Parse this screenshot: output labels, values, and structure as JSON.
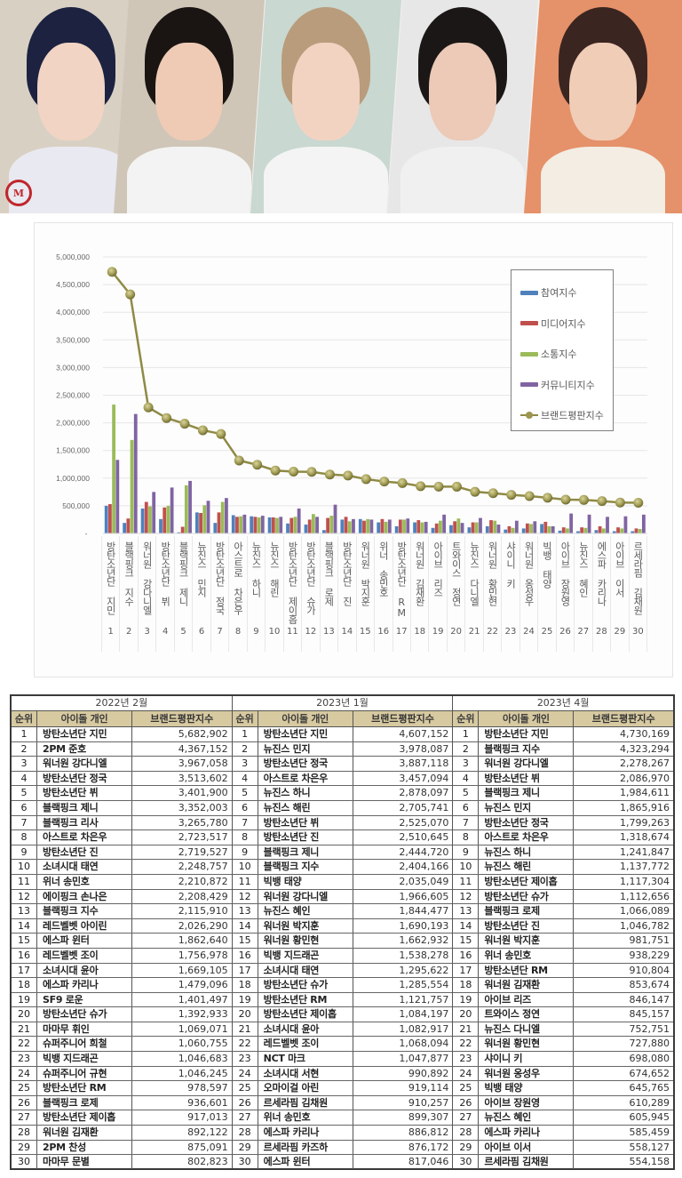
{
  "photos": {
    "people": [
      {
        "label": "photo-1",
        "hair": "#1c2240",
        "skin": "#f1d4c3",
        "shirt": "#e9e9f1",
        "bg": "#d9d0c4"
      },
      {
        "label": "photo-2",
        "hair": "#1a1512",
        "skin": "#efcbb6",
        "shirt": "#f3f3f3",
        "bg": "#cfc6b8"
      },
      {
        "label": "photo-3",
        "hair": "#b99c7c",
        "skin": "#f2d3c2",
        "shirt": "#f4f4f4",
        "bg": "#c9d8d0"
      },
      {
        "label": "photo-4",
        "hair": "#1b1716",
        "skin": "#eccab7",
        "shirt": "#f0f0f0",
        "bg": "#e7e7e7"
      },
      {
        "label": "photo-5",
        "hair": "#3a2520",
        "skin": "#f0cdb7",
        "shirt": "#f3ede3",
        "bg": "#e5916a"
      }
    ],
    "logo_text": "M"
  },
  "chart_data": {
    "type": "bar",
    "title": "",
    "xlabel": "",
    "ylabel": "",
    "ylim": [
      0,
      5000000
    ],
    "yticks": [
      "-",
      "500,000",
      "1,000,000",
      "1,500,000",
      "2,000,000",
      "2,500,000",
      "3,000,000",
      "3,500,000",
      "4,000,000",
      "4,500,000",
      "5,000,000"
    ],
    "grid": true,
    "legend_position": "right-inside",
    "categories": [
      "방탄소년단 지민",
      "블랙핑크 지수",
      "워너원 강다니엘",
      "방탄소년단 뷔",
      "블랙핑크 제니",
      "뉴진스 민지",
      "방탄소년단 정국",
      "아스트로 차은우",
      "뉴진스 하니",
      "뉴진스 해린",
      "방탄소년단 제이홉",
      "방탄소년단 슈가",
      "블랙핑크 로제",
      "방탄소년단 진",
      "워너원 박지훈",
      "위너 송민호",
      "방탄소년단 RM",
      "워너원 김재환",
      "아이브 리즈",
      "트와이스 정연",
      "뉴진스 다니엘",
      "워너원 황민현",
      "샤이니 키",
      "워너원 옹성우",
      "빅뱅 태양",
      "아이브 장원영",
      "뉴진스 혜인",
      "에스파 카리나",
      "아이브 이서",
      "르세라핌 김채원"
    ],
    "category_numbers": [
      "1",
      "2",
      "3",
      "4",
      "5",
      "6",
      "7",
      "8",
      "9",
      "10",
      "11",
      "12",
      "13",
      "14",
      "15",
      "16",
      "17",
      "18",
      "19",
      "20",
      "21",
      "22",
      "23",
      "24",
      "25",
      "26",
      "27",
      "28",
      "29",
      "30"
    ],
    "series": [
      {
        "name": "참여지수",
        "type": "bar",
        "color": "#4f81bd",
        "values": [
          500000,
          190000,
          450000,
          260000,
          20000,
          380000,
          190000,
          330000,
          310000,
          290000,
          180000,
          160000,
          60000,
          250000,
          260000,
          200000,
          130000,
          200000,
          100000,
          150000,
          110000,
          130000,
          70000,
          90000,
          170000,
          50000,
          40000,
          60000,
          40000,
          40000
        ]
      },
      {
        "name": "미디어지수",
        "type": "bar",
        "color": "#c0504d",
        "values": [
          530000,
          270000,
          570000,
          470000,
          120000,
          370000,
          380000,
          300000,
          300000,
          290000,
          280000,
          250000,
          280000,
          300000,
          230000,
          260000,
          250000,
          240000,
          180000,
          220000,
          200000,
          240000,
          130000,
          180000,
          210000,
          110000,
          110000,
          130000,
          110000,
          90000
        ]
      },
      {
        "name": "소통지수",
        "type": "bar",
        "color": "#9bbb59",
        "values": [
          2330000,
          1690000,
          490000,
          500000,
          870000,
          510000,
          570000,
          310000,
          290000,
          280000,
          300000,
          350000,
          320000,
          220000,
          260000,
          210000,
          250000,
          200000,
          230000,
          270000,
          200000,
          230000,
          100000,
          170000,
          130000,
          90000,
          100000,
          90000,
          90000,
          80000
        ]
      },
      {
        "name": "커뮤니티지수",
        "type": "bar",
        "color": "#8064a2",
        "values": [
          1330000,
          2160000,
          750000,
          830000,
          950000,
          590000,
          640000,
          340000,
          320000,
          300000,
          450000,
          300000,
          520000,
          260000,
          250000,
          250000,
          270000,
          210000,
          340000,
          190000,
          280000,
          160000,
          230000,
          220000,
          130000,
          360000,
          340000,
          300000,
          310000,
          340000
        ]
      },
      {
        "name": "브랜드평판지수",
        "type": "line",
        "color": "#9c9651",
        "values": [
          4730169,
          4323294,
          2278267,
          2086970,
          1984611,
          1865916,
          1799263,
          1318674,
          1241847,
          1137772,
          1117304,
          1112656,
          1066089,
          1046782,
          981751,
          938229,
          910804,
          853674,
          846147,
          845157,
          752751,
          727880,
          698080,
          674652,
          645765,
          610289,
          605945,
          585459,
          558127,
          554158
        ]
      }
    ]
  },
  "tables": [
    {
      "period": "2022년 2월",
      "headers": {
        "rank": "순위",
        "name": "아이돌 개인",
        "score": "브랜드평판지수"
      },
      "rows": [
        {
          "rank": "1",
          "name": "방탄소년단 지민",
          "score": "5,682,902"
        },
        {
          "rank": "2",
          "name": "2PM 준호",
          "score": "4,367,152"
        },
        {
          "rank": "3",
          "name": "워너원 강다니엘",
          "score": "3,967,058"
        },
        {
          "rank": "4",
          "name": "방탄소년단 정국",
          "score": "3,513,602"
        },
        {
          "rank": "5",
          "name": "방탄소년단 뷔",
          "score": "3,401,900"
        },
        {
          "rank": "6",
          "name": "블랙핑크 제니",
          "score": "3,352,003"
        },
        {
          "rank": "7",
          "name": "블랙핑크 리사",
          "score": "3,265,780"
        },
        {
          "rank": "8",
          "name": "아스트로 차은우",
          "score": "2,723,517"
        },
        {
          "rank": "9",
          "name": "방탄소년단 진",
          "score": "2,719,527"
        },
        {
          "rank": "10",
          "name": "소녀시대 태연",
          "score": "2,248,757"
        },
        {
          "rank": "11",
          "name": "위너 송민호",
          "score": "2,210,872"
        },
        {
          "rank": "12",
          "name": "에이핑크 손나은",
          "score": "2,208,429"
        },
        {
          "rank": "13",
          "name": "블랙핑크 지수",
          "score": "2,115,910"
        },
        {
          "rank": "14",
          "name": "레드벨벳 아이린",
          "score": "2,026,290"
        },
        {
          "rank": "15",
          "name": "에스파 윈터",
          "score": "1,862,640"
        },
        {
          "rank": "16",
          "name": "레드벨벳 조이",
          "score": "1,756,978"
        },
        {
          "rank": "17",
          "name": "소녀시대 윤아",
          "score": "1,669,105"
        },
        {
          "rank": "18",
          "name": "에스파 카리나",
          "score": "1,479,096"
        },
        {
          "rank": "19",
          "name": "SF9 로운",
          "score": "1,401,497"
        },
        {
          "rank": "20",
          "name": "방탄소년단 슈가",
          "score": "1,392,933"
        },
        {
          "rank": "21",
          "name": "마마무 휘인",
          "score": "1,069,071"
        },
        {
          "rank": "22",
          "name": "슈퍼주니어 희철",
          "score": "1,060,755"
        },
        {
          "rank": "23",
          "name": "빅뱅 지드래곤",
          "score": "1,046,683"
        },
        {
          "rank": "24",
          "name": "슈퍼주니어 규현",
          "score": "1,046,245"
        },
        {
          "rank": "25",
          "name": "방탄소년단 RM",
          "score": "978,597"
        },
        {
          "rank": "26",
          "name": "블랙핑크 로제",
          "score": "936,601"
        },
        {
          "rank": "27",
          "name": "방탄소년단 제이홉",
          "score": "917,013"
        },
        {
          "rank": "28",
          "name": "워너원 김재환",
          "score": "892,122"
        },
        {
          "rank": "29",
          "name": "2PM 찬성",
          "score": "875,091"
        },
        {
          "rank": "30",
          "name": "마마무 문별",
          "score": "802,823"
        }
      ]
    },
    {
      "period": "2023년 1월",
      "headers": {
        "rank": "순위",
        "name": "아이돌 개인",
        "score": "브랜드평판지수"
      },
      "rows": [
        {
          "rank": "1",
          "name": "방탄소년단 지민",
          "score": "4,607,152"
        },
        {
          "rank": "2",
          "name": "뉴진스 민지",
          "score": "3,978,087"
        },
        {
          "rank": "3",
          "name": "방탄소년단 정국",
          "score": "3,887,118"
        },
        {
          "rank": "4",
          "name": "아스트로 차은우",
          "score": "3,457,094"
        },
        {
          "rank": "5",
          "name": "뉴진스 하니",
          "score": "2,878,097"
        },
        {
          "rank": "6",
          "name": "뉴진스 해린",
          "score": "2,705,741"
        },
        {
          "rank": "7",
          "name": "방탄소년단 뷔",
          "score": "2,525,070"
        },
        {
          "rank": "8",
          "name": "방탄소년단 진",
          "score": "2,510,645"
        },
        {
          "rank": "9",
          "name": "블랙핑크 제니",
          "score": "2,444,720"
        },
        {
          "rank": "10",
          "name": "블랙핑크 지수",
          "score": "2,404,166"
        },
        {
          "rank": "11",
          "name": "빅뱅 태양",
          "score": "2,035,049"
        },
        {
          "rank": "12",
          "name": "워너원 강다니엘",
          "score": "1,966,605"
        },
        {
          "rank": "13",
          "name": "뉴진스 혜인",
          "score": "1,844,477"
        },
        {
          "rank": "14",
          "name": "워너원 박지훈",
          "score": "1,690,193"
        },
        {
          "rank": "15",
          "name": "워너원 황민현",
          "score": "1,662,932"
        },
        {
          "rank": "16",
          "name": "빅뱅 지드래곤",
          "score": "1,538,278"
        },
        {
          "rank": "17",
          "name": "소녀시대 태연",
          "score": "1,295,622"
        },
        {
          "rank": "18",
          "name": "방탄소년단 슈가",
          "score": "1,285,554"
        },
        {
          "rank": "19",
          "name": "방탄소년단 RM",
          "score": "1,121,757"
        },
        {
          "rank": "20",
          "name": "방탄소년단 제이홉",
          "score": "1,084,197"
        },
        {
          "rank": "21",
          "name": "소녀시대 윤아",
          "score": "1,082,917"
        },
        {
          "rank": "22",
          "name": "레드벨벳 조이",
          "score": "1,068,094"
        },
        {
          "rank": "23",
          "name": "NCT 마크",
          "score": "1,047,877"
        },
        {
          "rank": "24",
          "name": "소녀시대 서현",
          "score": "990,892"
        },
        {
          "rank": "25",
          "name": "오마이걸 아린",
          "score": "919,114"
        },
        {
          "rank": "26",
          "name": "르세라핌 김채원",
          "score": "910,257"
        },
        {
          "rank": "27",
          "name": "위너 송민호",
          "score": "899,307"
        },
        {
          "rank": "28",
          "name": "에스파 카리나",
          "score": "886,812"
        },
        {
          "rank": "29",
          "name": "르세라핌 카즈하",
          "score": "876,172"
        },
        {
          "rank": "30",
          "name": "에스파 윈터",
          "score": "817,046"
        }
      ]
    },
    {
      "period": "2023년 4월",
      "headers": {
        "rank": "순위",
        "name": "아이돌 개인",
        "score": "브랜드평판지수"
      },
      "rows": [
        {
          "rank": "1",
          "name": "방탄소년단 지민",
          "score": "4,730,169"
        },
        {
          "rank": "2",
          "name": "블랙핑크 지수",
          "score": "4,323,294"
        },
        {
          "rank": "3",
          "name": "워너원 강다니엘",
          "score": "2,278,267"
        },
        {
          "rank": "4",
          "name": "방탄소년단 뷔",
          "score": "2,086,970"
        },
        {
          "rank": "5",
          "name": "블랙핑크 제니",
          "score": "1,984,611"
        },
        {
          "rank": "6",
          "name": "뉴진스 민지",
          "score": "1,865,916"
        },
        {
          "rank": "7",
          "name": "방탄소년단 정국",
          "score": "1,799,263"
        },
        {
          "rank": "8",
          "name": "아스트로 차은우",
          "score": "1,318,674"
        },
        {
          "rank": "9",
          "name": "뉴진스 하니",
          "score": "1,241,847"
        },
        {
          "rank": "10",
          "name": "뉴진스 해린",
          "score": "1,137,772"
        },
        {
          "rank": "11",
          "name": "방탄소년단 제이홉",
          "score": "1,117,304"
        },
        {
          "rank": "12",
          "name": "방탄소년단 슈가",
          "score": "1,112,656"
        },
        {
          "rank": "13",
          "name": "블랙핑크 로제",
          "score": "1,066,089"
        },
        {
          "rank": "14",
          "name": "방탄소년단 진",
          "score": "1,046,782"
        },
        {
          "rank": "15",
          "name": "워너원 박지훈",
          "score": "981,751"
        },
        {
          "rank": "16",
          "name": "위너 송민호",
          "score": "938,229"
        },
        {
          "rank": "17",
          "name": "방탄소년단 RM",
          "score": "910,804"
        },
        {
          "rank": "18",
          "name": "워너원 김재환",
          "score": "853,674"
        },
        {
          "rank": "19",
          "name": "아이브 리즈",
          "score": "846,147"
        },
        {
          "rank": "20",
          "name": "트와이스 정연",
          "score": "845,157"
        },
        {
          "rank": "21",
          "name": "뉴진스 다니엘",
          "score": "752,751"
        },
        {
          "rank": "22",
          "name": "워너원 황민현",
          "score": "727,880"
        },
        {
          "rank": "23",
          "name": "샤이니 키",
          "score": "698,080"
        },
        {
          "rank": "24",
          "name": "워너원 옹성우",
          "score": "674,652"
        },
        {
          "rank": "25",
          "name": "빅뱅 태양",
          "score": "645,765"
        },
        {
          "rank": "26",
          "name": "아이브 장원영",
          "score": "610,289"
        },
        {
          "rank": "27",
          "name": "뉴진스 혜인",
          "score": "605,945"
        },
        {
          "rank": "28",
          "name": "에스파 카리나",
          "score": "585,459"
        },
        {
          "rank": "29",
          "name": "아이브 이서",
          "score": "558,127"
        },
        {
          "rank": "30",
          "name": "르세라핌 김채원",
          "score": "554,158"
        }
      ]
    }
  ]
}
